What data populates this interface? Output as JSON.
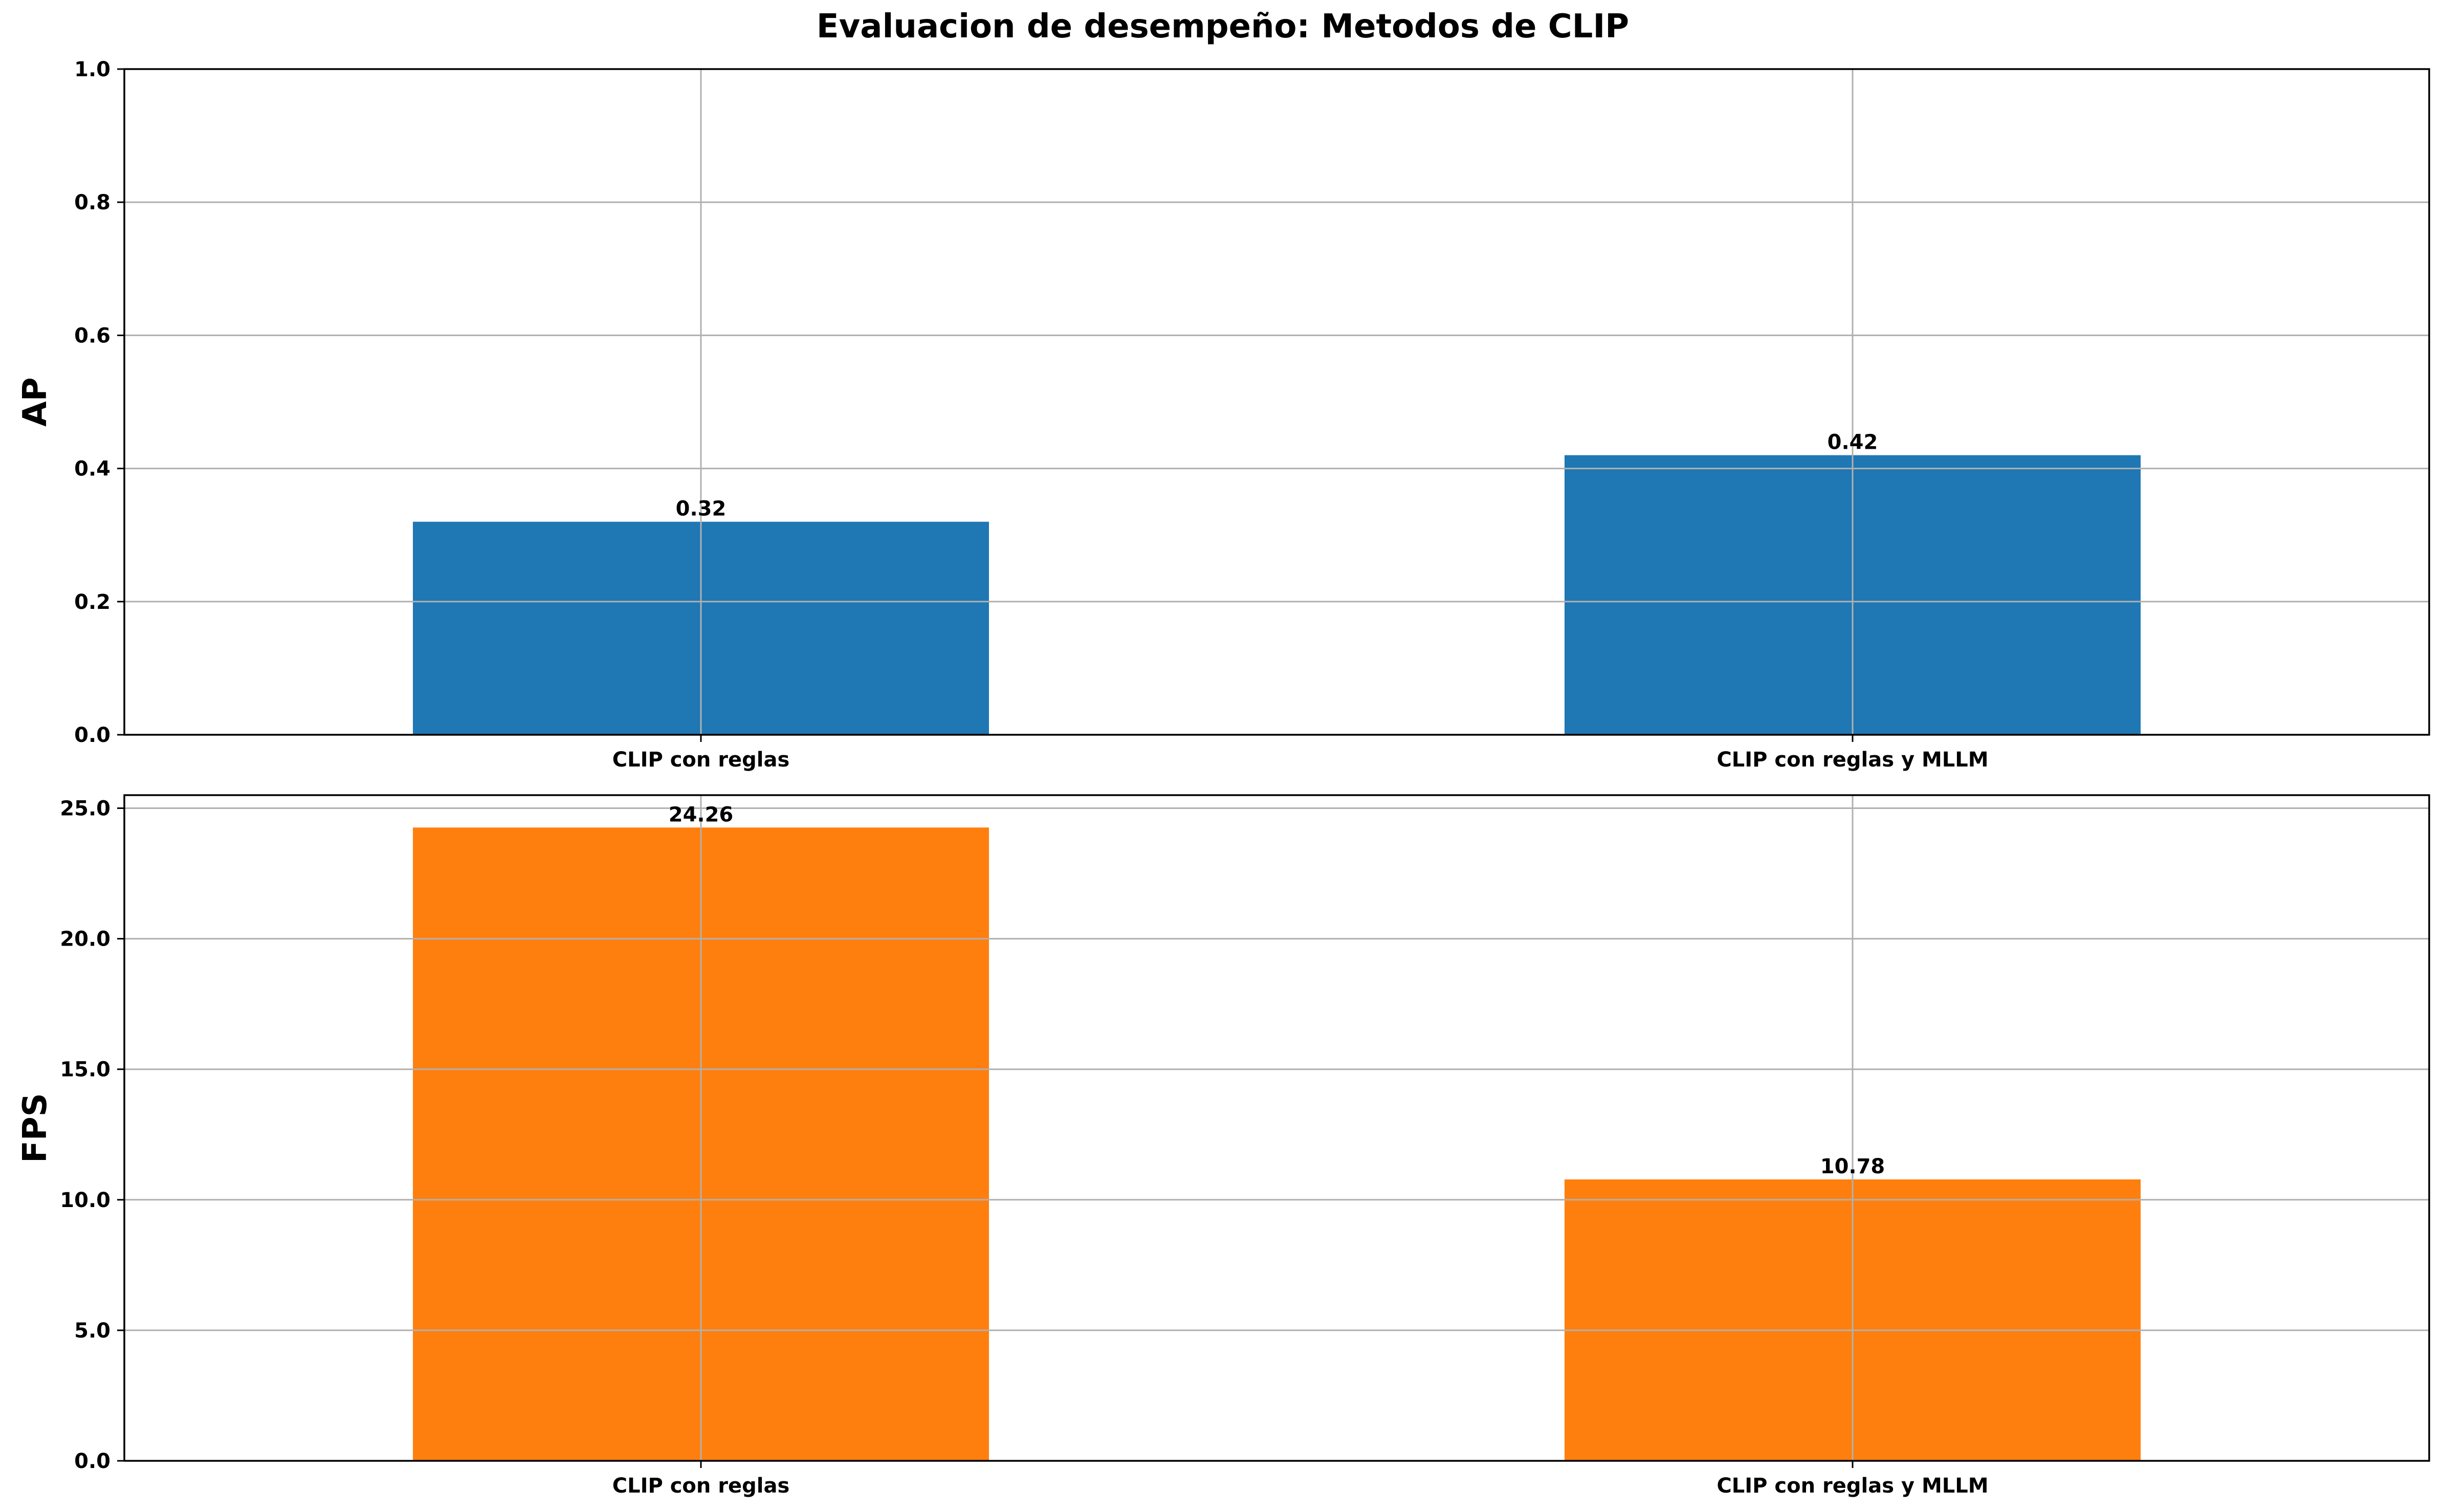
{
  "figure": {
    "title": "Evaluacion de desempeño: Metodos de CLIP"
  },
  "chart_data": [
    {
      "type": "bar",
      "categories": [
        "CLIP con reglas",
        "CLIP con reglas y MLLM"
      ],
      "values": [
        0.32,
        0.42
      ],
      "value_labels": [
        "0.32",
        "0.42"
      ],
      "ylabel": "AP",
      "xlabel": "",
      "ylim": [
        0,
        1.0
      ],
      "yticks": [
        0.0,
        0.2,
        0.4,
        0.6,
        0.8,
        1.0
      ],
      "ytick_labels": [
        "0.0",
        "0.2",
        "0.4",
        "0.6",
        "0.8",
        "1.0"
      ],
      "grid": true,
      "color": "#1f77b4"
    },
    {
      "type": "bar",
      "categories": [
        "CLIP con reglas",
        "CLIP con reglas y MLLM"
      ],
      "values": [
        24.26,
        10.78
      ],
      "value_labels": [
        "24.26",
        "10.78"
      ],
      "ylabel": "FPS",
      "xlabel": "",
      "ylim": [
        0,
        25.5
      ],
      "yticks": [
        0.0,
        5.0,
        10.0,
        15.0,
        20.0,
        25.0
      ],
      "ytick_labels": [
        "0.0",
        "5.0",
        "10.0",
        "15.0",
        "20.0",
        "25.0"
      ],
      "grid": true,
      "color": "#ff7f0e"
    }
  ]
}
